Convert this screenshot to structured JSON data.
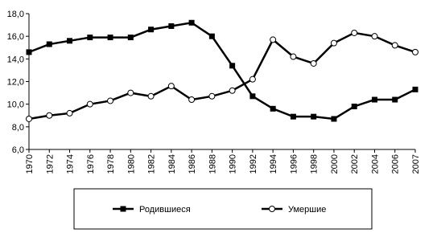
{
  "chart_data": {
    "type": "line",
    "categories": [
      "1970",
      "1972",
      "1974",
      "1976",
      "1978",
      "1980",
      "1982",
      "1984",
      "1986",
      "1988",
      "1990",
      "1992",
      "1994",
      "1996",
      "1998",
      "2000",
      "2002",
      "2004",
      "2006",
      "2007"
    ],
    "series": [
      {
        "name": "Родившиеся",
        "color": "#000000",
        "marker": "square",
        "values": [
          14.6,
          15.3,
          15.6,
          15.9,
          15.9,
          15.9,
          16.6,
          16.9,
          17.2,
          16.0,
          13.4,
          10.7,
          9.6,
          8.9,
          8.9,
          8.7,
          9.8,
          10.4,
          10.4,
          11.3
        ]
      },
      {
        "name": "Умершие",
        "color": "#000000",
        "marker": "circle",
        "values": [
          8.7,
          9.0,
          9.2,
          10.0,
          10.3,
          11.0,
          10.7,
          11.6,
          10.4,
          10.7,
          11.2,
          12.2,
          15.7,
          14.2,
          13.6,
          15.4,
          16.3,
          16.0,
          15.2,
          14.6
        ]
      }
    ],
    "ylim": [
      6,
      18
    ],
    "yticks": [
      {
        "value": 6,
        "label": "6,0"
      },
      {
        "value": 8,
        "label": "8,0"
      },
      {
        "value": 10,
        "label": "10,0"
      },
      {
        "value": 12,
        "label": "12,0"
      },
      {
        "value": 14,
        "label": "14,0"
      },
      {
        "value": 16,
        "label": "16,0"
      },
      {
        "value": 18,
        "label": "18,0"
      }
    ],
    "grid": false
  }
}
